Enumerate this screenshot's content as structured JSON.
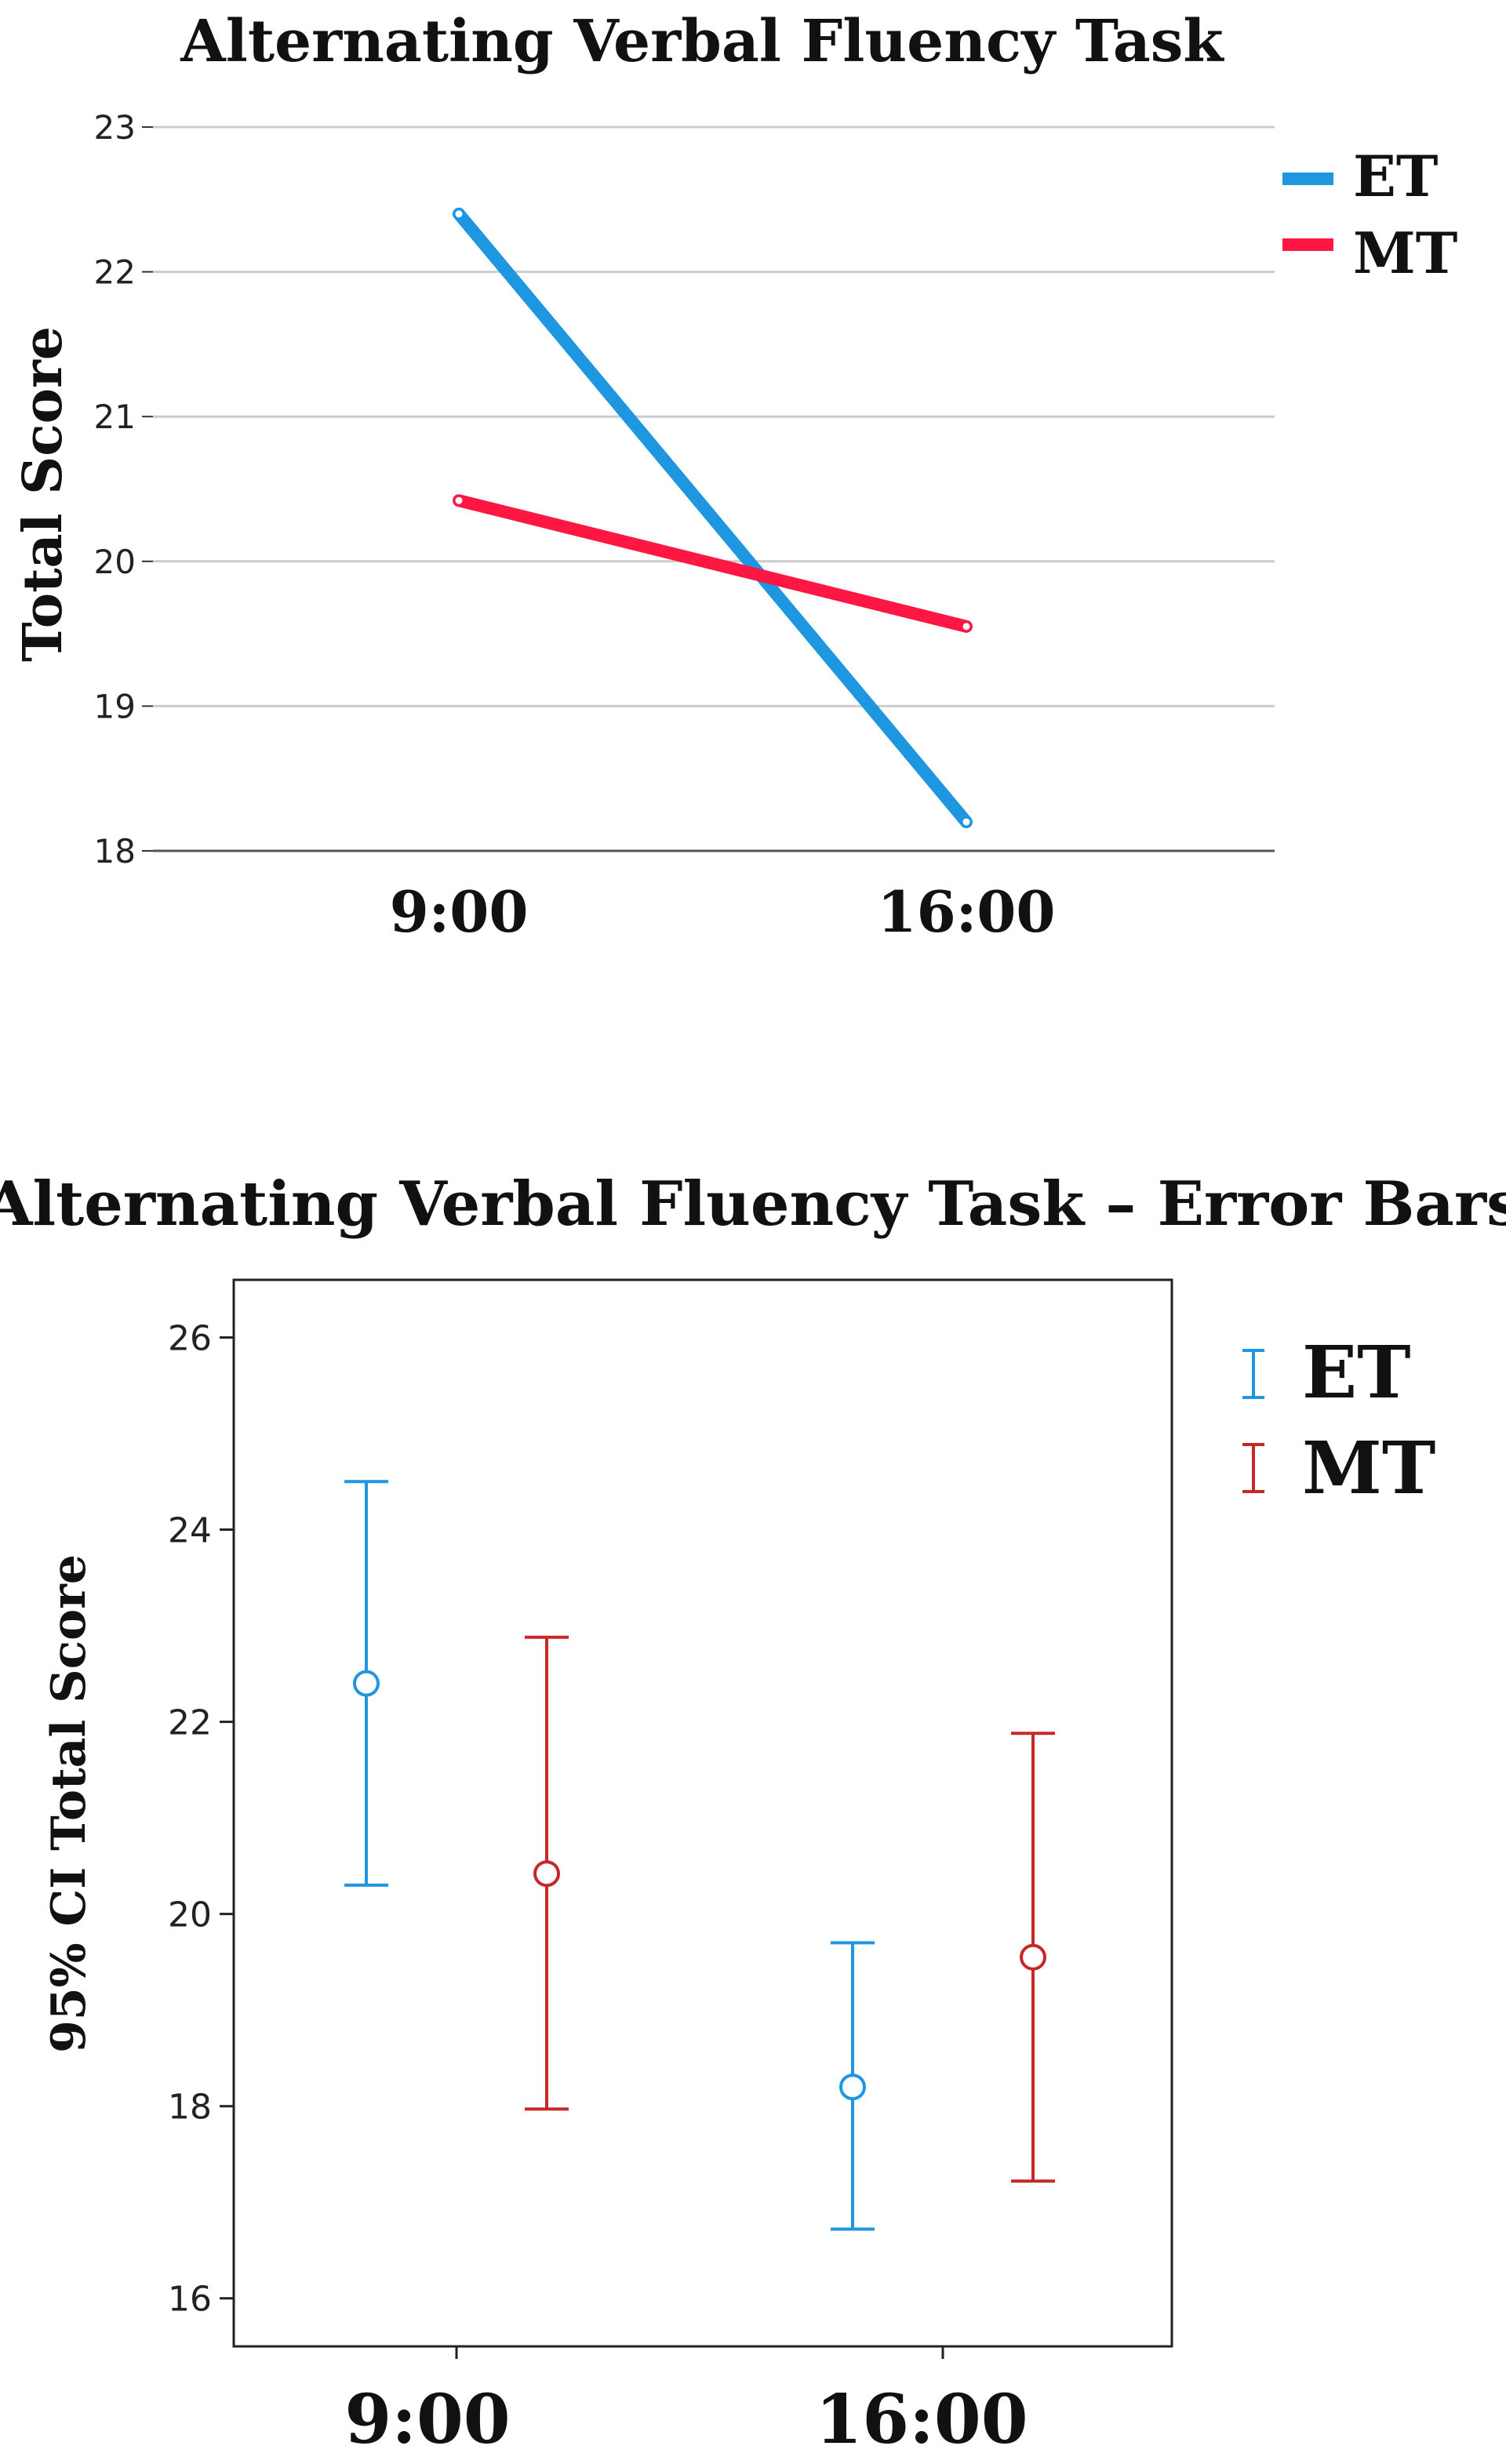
{
  "chart_data": [
    {
      "type": "line",
      "title": "Alternating Verbal Fluency Task",
      "xlabel": "",
      "ylabel": "Total Score",
      "categories": [
        "9:00",
        "16:00"
      ],
      "ylim": [
        18,
        23
      ],
      "yticks": [
        18,
        19,
        20,
        21,
        22,
        23
      ],
      "grid": true,
      "legend_position": "right",
      "series": [
        {
          "name": "ET",
          "values": [
            22.4,
            18.2
          ],
          "color": "#1f96e0"
        },
        {
          "name": "MT",
          "values": [
            20.42,
            19.55
          ],
          "color": "#ff1744"
        }
      ]
    },
    {
      "type": "errorbar",
      "title": "Alternating Verbal Fluency Task – Error Bars",
      "xlabel": "",
      "ylabel": "95% CI Total Score",
      "categories": [
        "9:00",
        "16:00"
      ],
      "ylim": [
        15.5,
        26.6
      ],
      "yticks": [
        16,
        18,
        20,
        22,
        24,
        26
      ],
      "grid": false,
      "legend_position": "right",
      "series": [
        {
          "name": "ET",
          "color": "#1f96e0",
          "means": [
            22.4,
            18.2
          ],
          "lower": [
            20.3,
            16.72
          ],
          "upper": [
            24.5,
            19.7
          ]
        },
        {
          "name": "MT",
          "color": "#c62828",
          "means": [
            20.42,
            19.55
          ],
          "lower": [
            17.97,
            17.22
          ],
          "upper": [
            22.88,
            21.88
          ]
        }
      ]
    }
  ]
}
